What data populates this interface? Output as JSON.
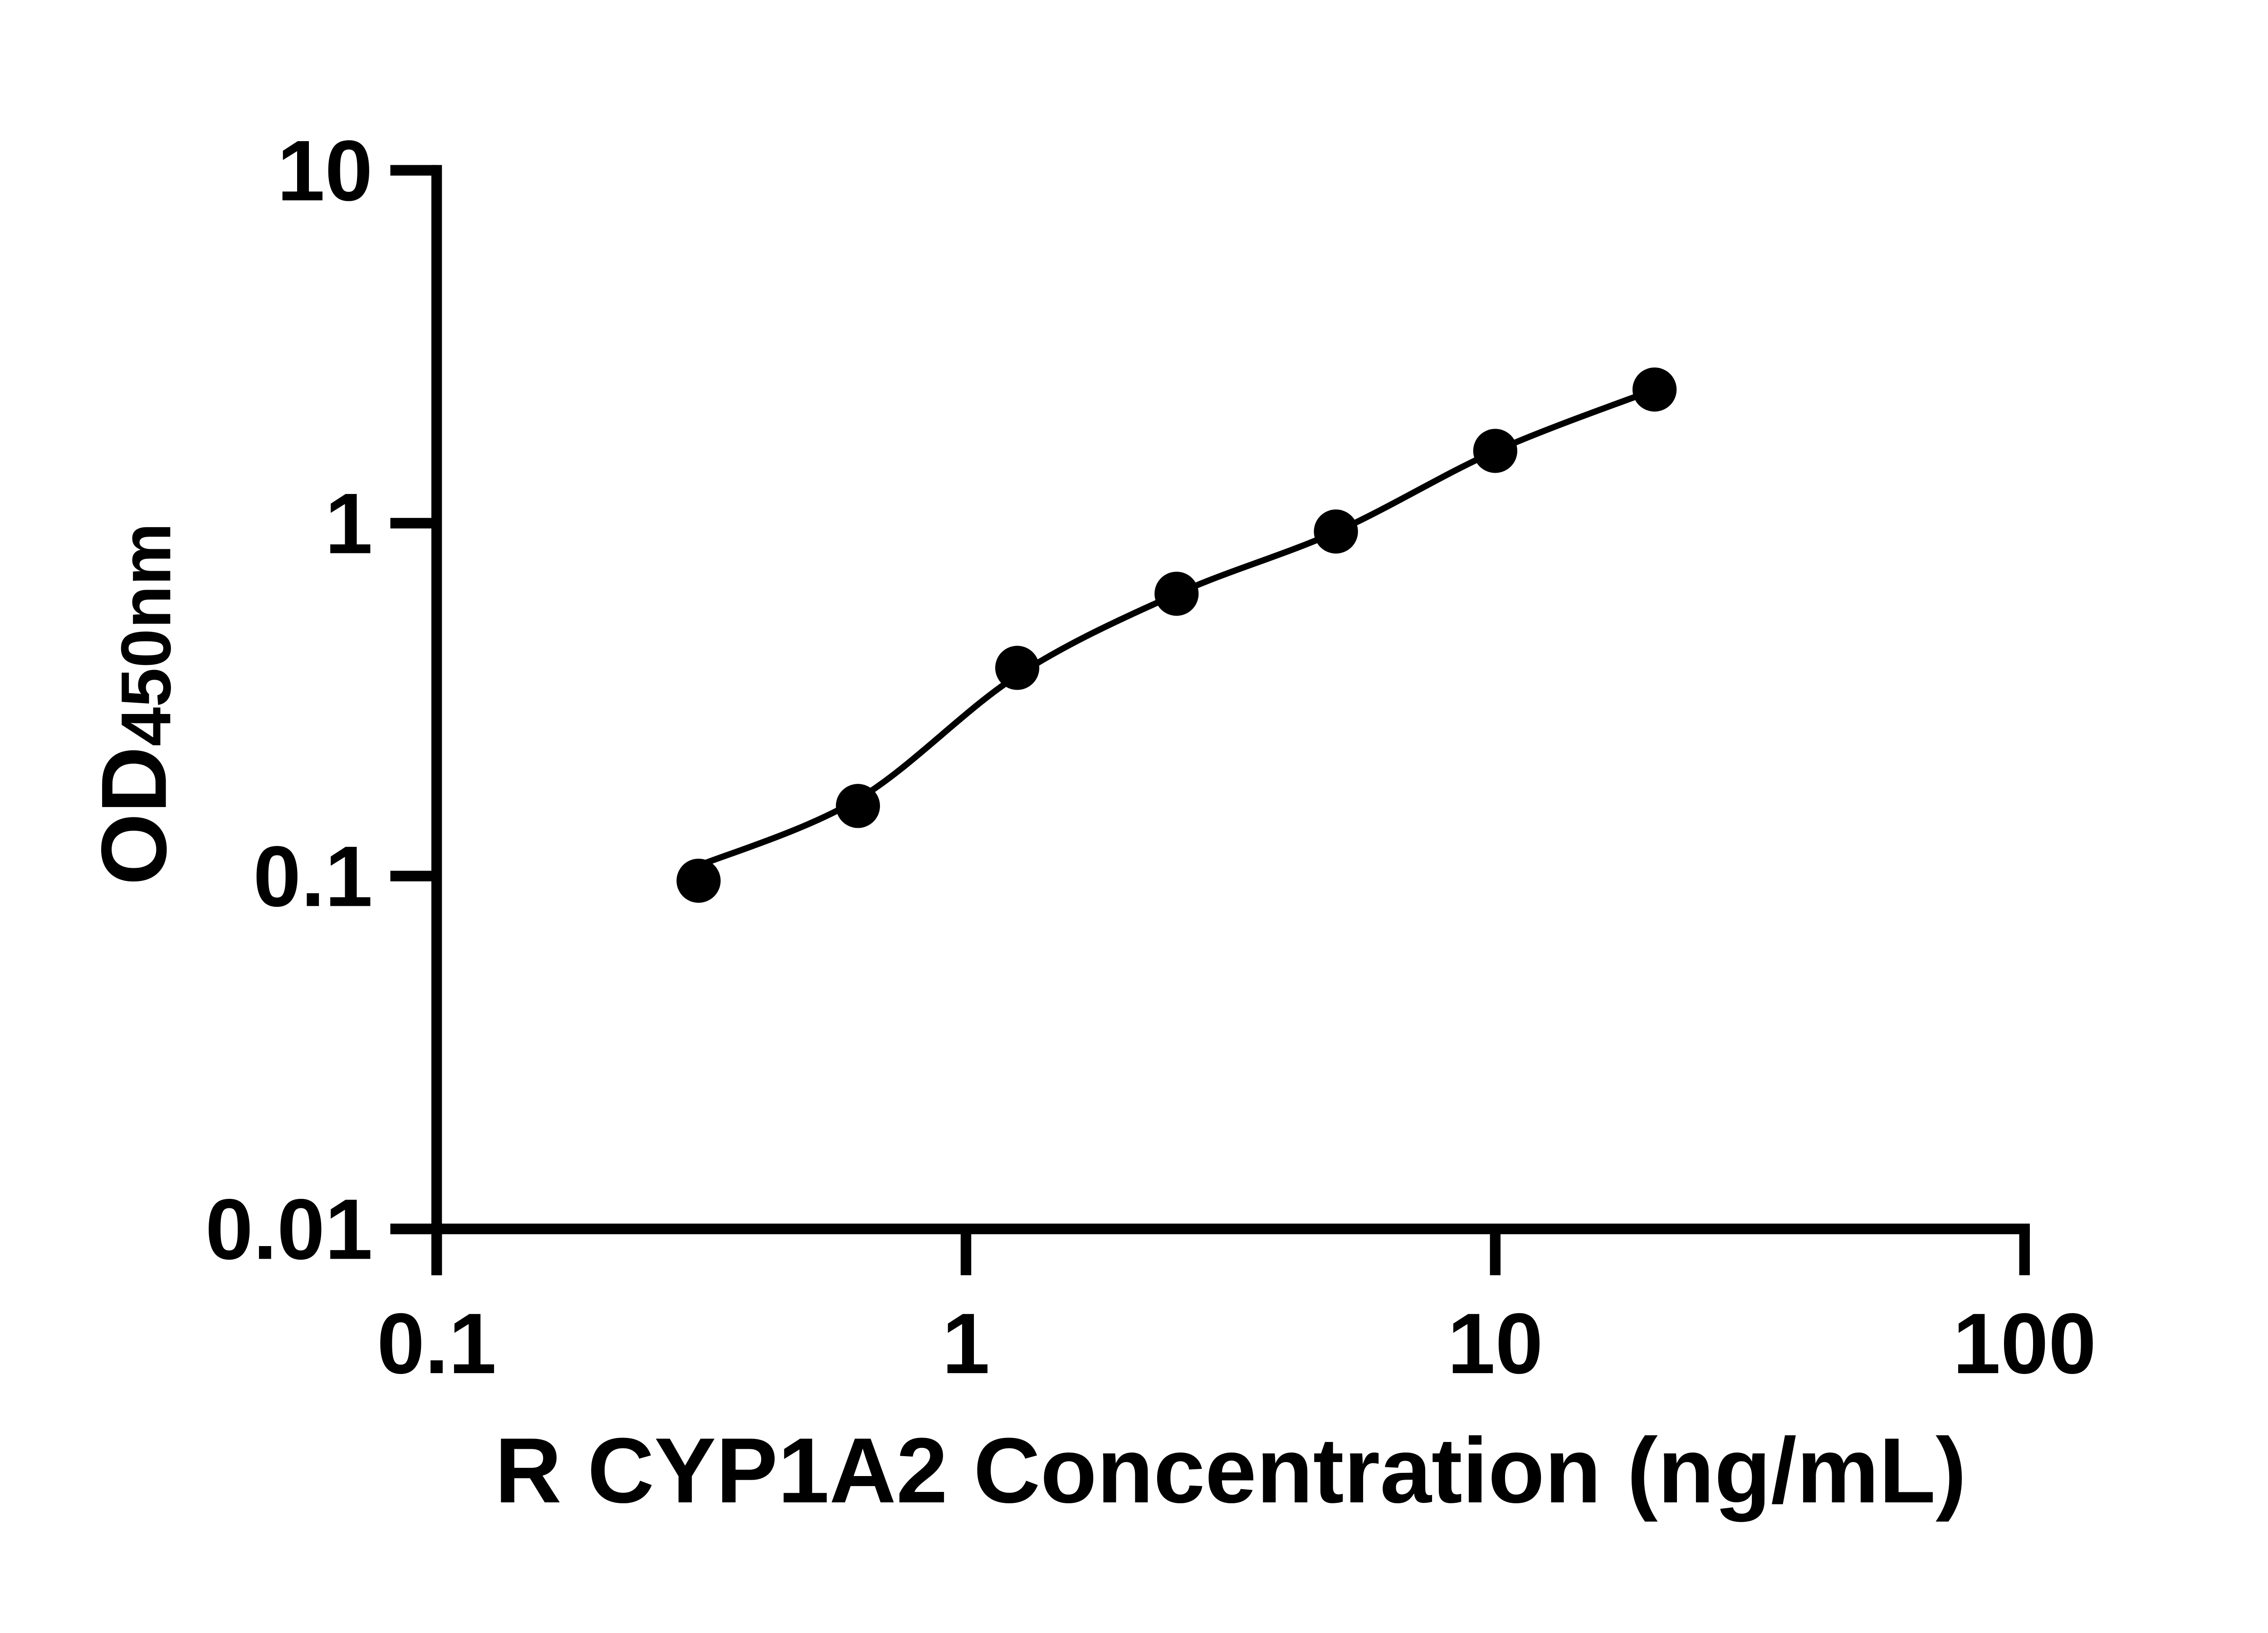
{
  "figure": {
    "background_color": "#ffffff",
    "ink_color": "#000000",
    "description": "ELISA standard curve, log-log scatter plot with fitted line"
  },
  "chart_data": {
    "type": "scatter",
    "title": "",
    "xlabel": "R CYP1A2 Concentration (ng/mL)",
    "ylabel_main": "OD",
    "ylabel_subscript": "450nm",
    "x_scale": "log",
    "y_scale": "log",
    "xlim": [
      0.1,
      100
    ],
    "ylim": [
      0.01,
      10
    ],
    "x_ticks": [
      0.1,
      1,
      10,
      100
    ],
    "x_tick_labels": [
      "0.1",
      "1",
      "10",
      "100"
    ],
    "y_ticks": [
      0.01,
      0.1,
      1,
      10
    ],
    "y_tick_labels": [
      "0.01",
      "0.1",
      "1",
      "10"
    ],
    "grid": false,
    "legend_position": "none",
    "marker_color": "#000000",
    "line_color": "#000000",
    "series": [
      {
        "name": "standard-points",
        "type": "scatter",
        "marker": "filled-circle",
        "x": [
          0.3125,
          0.625,
          1.25,
          2.5,
          5,
          10,
          20
        ],
        "y": [
          0.097,
          0.158,
          0.389,
          0.631,
          0.947,
          1.603,
          2.392
        ]
      },
      {
        "name": "fitted-curve",
        "type": "smooth-line",
        "x": [
          0.3125,
          0.625,
          1.25,
          2.5,
          5,
          10,
          20
        ],
        "y": [
          0.107,
          0.165,
          0.37,
          0.63,
          0.945,
          1.6,
          2.39
        ]
      }
    ]
  }
}
